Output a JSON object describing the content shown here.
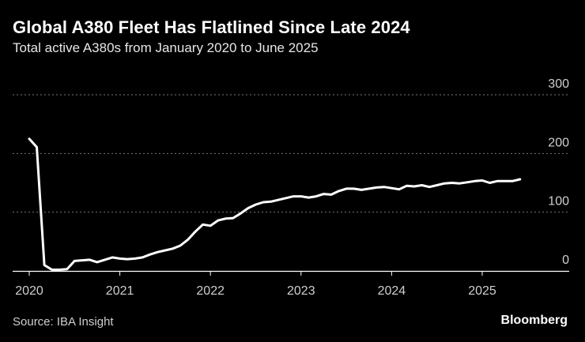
{
  "header": {
    "title": "Global A380 Fleet Has Flatlined Since Late 2024",
    "subtitle": "Total active A380s from January 2020 to June 2025"
  },
  "footer": {
    "source": "Source: IBA Insight",
    "brand": "Bloomberg"
  },
  "colors": {
    "background": "#000000",
    "line": "#ffffff",
    "grid": "#7a7a7a",
    "text": "#ffffff",
    "muted_text": "#cfcfcf"
  },
  "chart_data": {
    "type": "line",
    "title": "Global A380 Fleet Has Flatlined Since Late 2024",
    "subtitle": "Total active A380s from January 2020 to June 2025",
    "xlabel": "",
    "ylabel": "",
    "xlim": [
      "2020-01",
      "2025-12"
    ],
    "ylim": [
      0,
      300
    ],
    "x_ticks": [
      "2020",
      "2021",
      "2022",
      "2023",
      "2024",
      "2025"
    ],
    "y_ticks": [
      0,
      100,
      200,
      300
    ],
    "y_axis_side": "right",
    "grid": "horizontal dotted",
    "legend": "none",
    "series": [
      {
        "x": [
          "2020-01",
          "2020-02",
          "2020-03",
          "2020-04",
          "2020-05",
          "2020-06",
          "2020-07",
          "2020-08",
          "2020-09",
          "2020-10",
          "2020-11",
          "2020-12",
          "2021-01",
          "2021-02",
          "2021-03",
          "2021-04",
          "2021-05",
          "2021-06",
          "2021-07",
          "2021-08",
          "2021-09",
          "2021-10",
          "2021-11",
          "2021-12",
          "2022-01",
          "2022-02",
          "2022-03",
          "2022-04",
          "2022-05",
          "2022-06",
          "2022-07",
          "2022-08",
          "2022-09",
          "2022-10",
          "2022-11",
          "2022-12",
          "2023-01",
          "2023-02",
          "2023-03",
          "2023-04",
          "2023-05",
          "2023-06",
          "2023-07",
          "2023-08",
          "2023-09",
          "2023-10",
          "2023-11",
          "2023-12",
          "2024-01",
          "2024-02",
          "2024-03",
          "2024-04",
          "2024-05",
          "2024-06",
          "2024-07",
          "2024-08",
          "2024-09",
          "2024-10",
          "2024-11",
          "2024-12",
          "2025-01",
          "2025-02",
          "2025-03",
          "2025-04",
          "2025-05",
          "2025-06"
        ],
        "values": [
          225,
          211,
          10,
          2,
          2,
          3,
          17,
          18,
          19,
          15,
          19,
          23,
          21,
          20,
          21,
          23,
          28,
          32,
          35,
          38,
          43,
          53,
          67,
          79,
          77,
          86,
          89,
          90,
          98,
          107,
          113,
          117,
          118,
          121,
          124,
          127,
          127,
          125,
          127,
          131,
          130,
          136,
          140,
          140,
          138,
          140,
          142,
          143,
          141,
          139,
          145,
          144,
          146,
          143,
          146,
          149,
          150,
          149,
          151,
          153,
          154,
          150,
          153,
          153,
          153,
          156
        ]
      }
    ]
  }
}
